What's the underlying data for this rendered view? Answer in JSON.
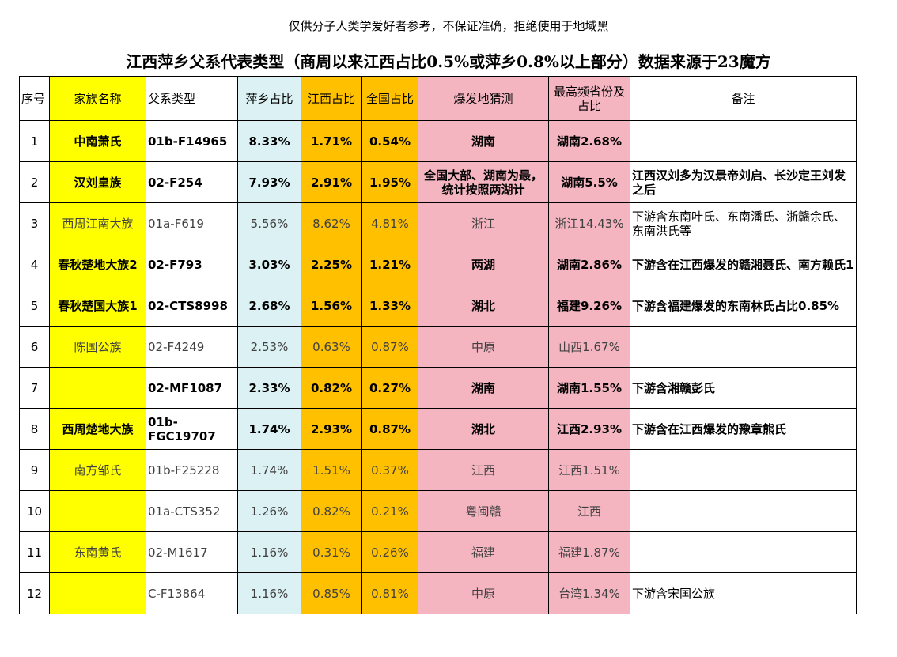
{
  "disclaimer": "仅供分子人类学爱好者参考，不保证准确，拒绝使用于地域黑",
  "title": "江西萍乡父系代表类型（商周以来江西占比0.5%或萍乡0.8%以上部分）数据来源于23魔方",
  "headers": {
    "index": "序号",
    "family": "家族名称",
    "type": "父系类型",
    "pingxiang": "萍乡占比",
    "jiangxi": "江西占比",
    "national": "全国占比",
    "origin": "爆发地猜测",
    "top_province": "最高频省份及占比",
    "note": "备注"
  },
  "rows": [
    {
      "index": "1",
      "family": "中南萧氏",
      "type": "01b-F14965",
      "pingxiang": "8.33%",
      "jiangxi": "1.71%",
      "national": "0.54%",
      "origin": "湖南",
      "top_province": "湖南2.68%",
      "note": "",
      "bold": true,
      "family_bg": true
    },
    {
      "index": "2",
      "family": "汉刘皇族",
      "type": "02-F254",
      "pingxiang": "7.93%",
      "jiangxi": "2.91%",
      "national": "1.95%",
      "origin": "全国大部、湖南为最，统计按照两湖计",
      "top_province": "湖南5.5%",
      "note": "江西汉刘多为汉景帝刘启、长沙定王刘发之后",
      "bold": true,
      "family_bg": true
    },
    {
      "index": "3",
      "family": "西周江南大族",
      "type": "01a-F619",
      "pingxiang": "5.56%",
      "jiangxi": "8.62%",
      "national": "4.81%",
      "origin": "浙江",
      "top_province": "浙江14.43%",
      "note": "下游含东南叶氏、东南潘氏、浙赣余氏、东南洪氏等",
      "bold": false,
      "family_bg": true
    },
    {
      "index": "4",
      "family": "春秋楚地大族2",
      "type": "02-F793",
      "pingxiang": "3.03%",
      "jiangxi": "2.25%",
      "national": "1.21%",
      "origin": "两湖",
      "top_province": "湖南2.86%",
      "note": "下游含在江西爆发的赣湘聂氏、南方赖氏1",
      "bold": true,
      "family_bg": true
    },
    {
      "index": "5",
      "family": "春秋楚国大族1",
      "type": "02-CTS8998",
      "pingxiang": "2.68%",
      "jiangxi": "1.56%",
      "national": "1.33%",
      "origin": "湖北",
      "top_province": "福建9.26%",
      "note": "下游含福建爆发的东南林氏占比0.85%",
      "bold": true,
      "family_bg": true
    },
    {
      "index": "6",
      "family": "陈国公族",
      "type": "02-F4249",
      "pingxiang": "2.53%",
      "jiangxi": "0.63%",
      "national": "0.87%",
      "origin": "中原",
      "top_province": "山西1.67%",
      "note": "",
      "bold": false,
      "family_bg": true
    },
    {
      "index": "7",
      "family": "",
      "type": "02-MF1087",
      "pingxiang": "2.33%",
      "jiangxi": "0.82%",
      "national": "0.27%",
      "origin": "湖南",
      "top_province": "湖南1.55%",
      "note": "下游含湘赣彭氏",
      "bold": true,
      "family_bg": true
    },
    {
      "index": "8",
      "family": "西周楚地大族",
      "type": "01b-FGC19707",
      "pingxiang": "1.74%",
      "jiangxi": "2.93%",
      "national": "0.87%",
      "origin": "湖北",
      "top_province": "江西2.93%",
      "note": "下游含在江西爆发的豫章熊氏",
      "bold": true,
      "family_bg": true
    },
    {
      "index": "9",
      "family": "南方邹氏",
      "type": "01b-F25228",
      "pingxiang": "1.74%",
      "jiangxi": "1.51%",
      "national": "0.37%",
      "origin": "江西",
      "top_province": "江西1.51%",
      "note": "",
      "bold": false,
      "family_bg": true
    },
    {
      "index": "10",
      "family": "",
      "type": "01a-CTS352",
      "pingxiang": "1.26%",
      "jiangxi": "0.82%",
      "national": "0.21%",
      "origin": "粤闽赣",
      "top_province": "江西",
      "note": "",
      "bold": false,
      "family_bg": true
    },
    {
      "index": "11",
      "family": "东南黄氏",
      "type": "02-M1617",
      "pingxiang": "1.16%",
      "jiangxi": "0.31%",
      "national": "0.26%",
      "origin": "福建",
      "top_province": "福建1.87%",
      "note": "",
      "bold": false,
      "family_bg": true
    },
    {
      "index": "12",
      "family": "",
      "type": "C-F13864",
      "pingxiang": "1.16%",
      "jiangxi": "0.85%",
      "national": "0.81%",
      "origin": "中原",
      "top_province": "台湾1.34%",
      "note": "下游含宋国公族",
      "bold": false,
      "family_bg": true
    }
  ],
  "colors": {
    "yellow": "#ffff00",
    "cyan": "#dbf1f3",
    "orange": "#ffc000",
    "pink": "#f4b5c0"
  }
}
